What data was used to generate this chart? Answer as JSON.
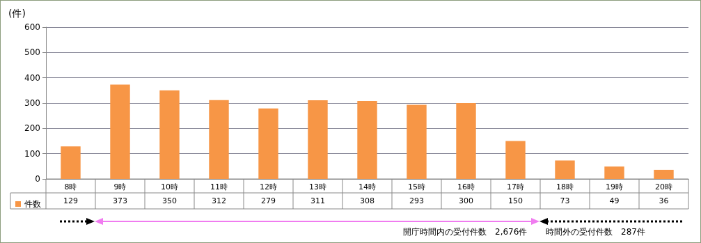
{
  "chart_data": {
    "type": "bar",
    "ylabel": "(件)",
    "categories": [
      "8時",
      "9時",
      "10時",
      "11時",
      "12時",
      "13時",
      "14時",
      "15時",
      "16時",
      "17時",
      "18時",
      "19時",
      "20時"
    ],
    "series": [
      {
        "name": "件数",
        "color": "#f79646",
        "values": [
          129,
          373,
          350,
          312,
          279,
          311,
          308,
          293,
          300,
          150,
          73,
          49,
          36
        ]
      }
    ],
    "ylim": [
      0,
      600
    ],
    "yticks": [
      0,
      100,
      200,
      300,
      400,
      500,
      600
    ],
    "grid": "y",
    "legend": "bottom left",
    "data_labels": true,
    "annotations": [
      "開庁時間内の受付件数　2,676件",
      "時間外の受付件数　287件"
    ]
  }
}
